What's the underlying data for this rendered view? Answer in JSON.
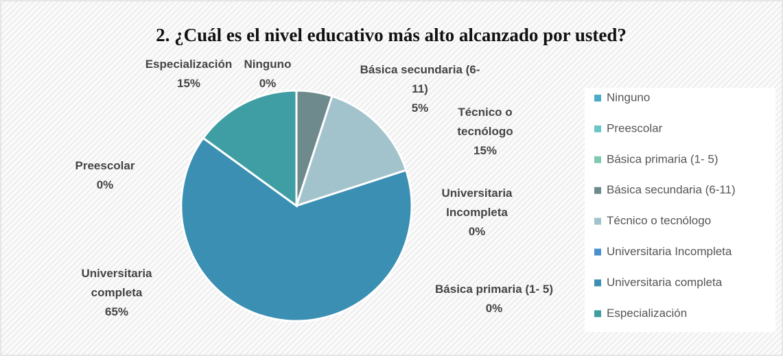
{
  "chart_data": {
    "type": "pie",
    "title": "2. ¿Cuál es el nivel educativo más alto alcanzado por usted?",
    "categories": [
      "Ninguno",
      "Preescolar",
      "Básica primaria (1- 5)",
      "Básica secundaria (6-11)",
      "Técnico o tecnólogo",
      "Universitaria Incompleta",
      "Universitaria completa",
      "Especialización"
    ],
    "values": [
      0,
      0,
      0,
      5,
      15,
      0,
      65,
      15
    ],
    "value_labels": [
      "0%",
      "0%",
      "0%",
      "5%",
      "15%",
      "0%",
      "65%",
      "15%"
    ],
    "colors": [
      "#4bacc6",
      "#6cc6c9",
      "#7fc9b0",
      "#6f8a8d",
      "#a3c3cc",
      "#4a90d0",
      "#3a8fb3",
      "#3f9ea3"
    ],
    "legend": "right"
  }
}
